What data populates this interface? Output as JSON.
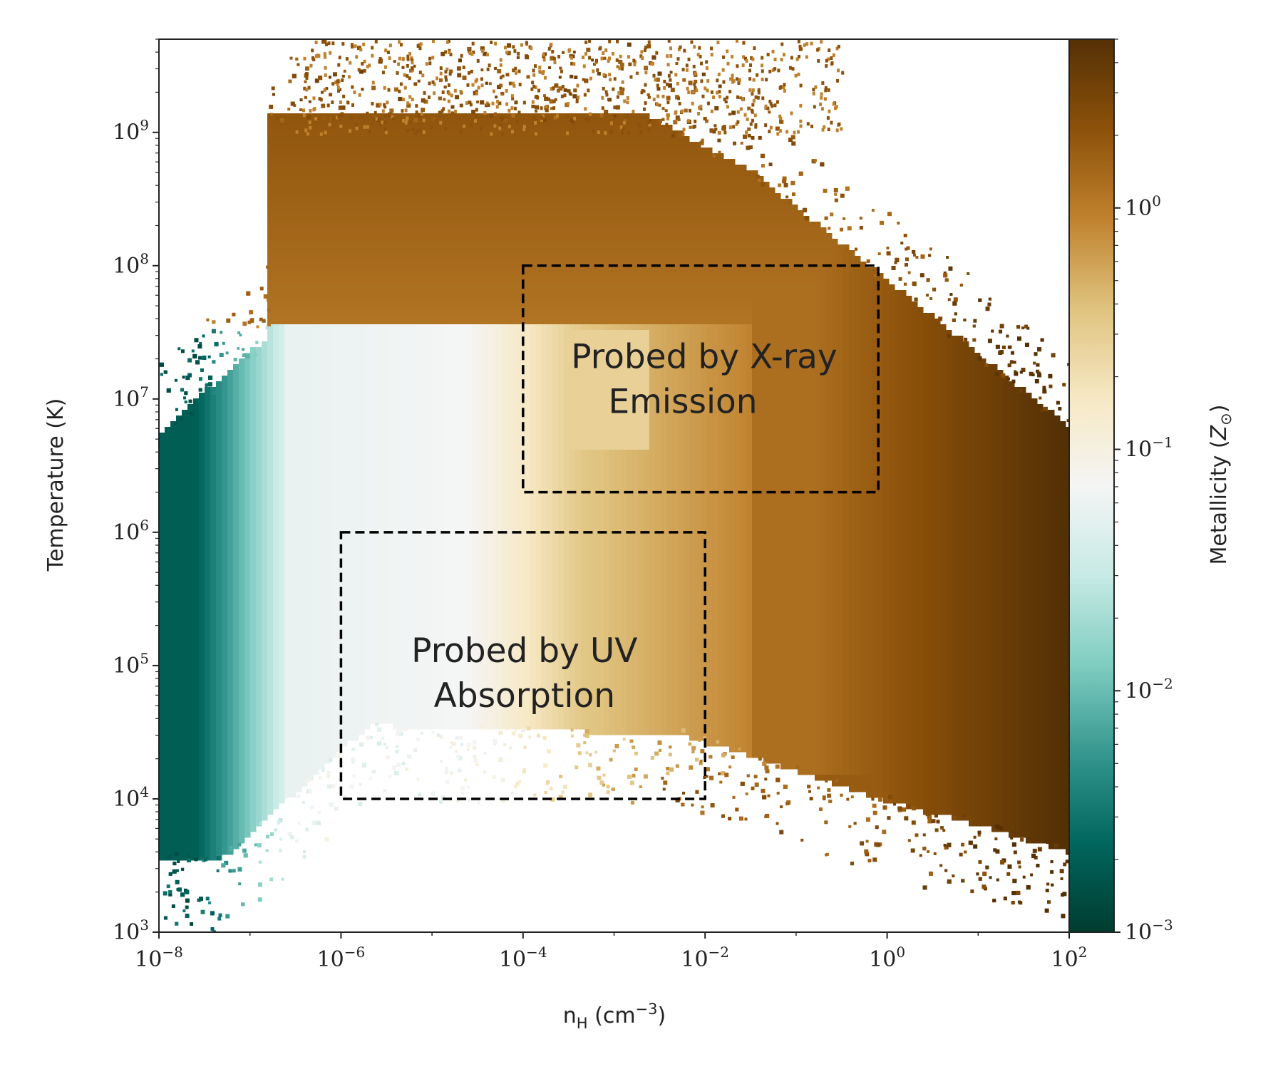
{
  "chart_data": {
    "type": "heatmap",
    "description_kind": "phase diagram (2D histogram) colored by metallicity",
    "x_axis": {
      "label_base": "n",
      "label_sub": "H",
      "label_unit_open": " (cm",
      "label_unit_exp": "−3",
      "label_unit_close": ")",
      "scale": "log",
      "range": [
        1e-08,
        100.0
      ],
      "ticks": [
        {
          "value": 1e-08,
          "base": "10",
          "exp": "−8"
        },
        {
          "value": 1e-06,
          "base": "10",
          "exp": "−6"
        },
        {
          "value": 0.0001,
          "base": "10",
          "exp": "−4"
        },
        {
          "value": 0.01,
          "base": "10",
          "exp": "−2"
        },
        {
          "value": 1.0,
          "base": "10",
          "exp": "0"
        },
        {
          "value": 100.0,
          "base": "10",
          "exp": "2"
        }
      ]
    },
    "y_axis": {
      "label": "Temperature (K)",
      "scale": "log",
      "range": [
        1000.0,
        5000000000.0
      ],
      "ticks": [
        {
          "value": 1000.0,
          "base": "10",
          "exp": "3"
        },
        {
          "value": 10000.0,
          "base": "10",
          "exp": "4"
        },
        {
          "value": 100000.0,
          "base": "10",
          "exp": "5"
        },
        {
          "value": 1000000.0,
          "base": "10",
          "exp": "6"
        },
        {
          "value": 10000000.0,
          "base": "10",
          "exp": "7"
        },
        {
          "value": 100000000.0,
          "base": "10",
          "exp": "8"
        },
        {
          "value": 1000000000.0,
          "base": "10",
          "exp": "9"
        }
      ]
    },
    "colorbar": {
      "label_text": "Metallicity (",
      "label_symbol": "Z",
      "label_sub": "⊙",
      "label_close": ")",
      "scale": "log",
      "range": [
        0.001,
        5
      ],
      "ticks": [
        {
          "value": 0.001,
          "base": "10",
          "exp": "−3"
        },
        {
          "value": 0.01,
          "base": "10",
          "exp": "−2"
        },
        {
          "value": 0.1,
          "base": "10",
          "exp": "−1"
        },
        {
          "value": 1.0,
          "base": "10",
          "exp": "0"
        }
      ],
      "colormap": "BrBG (reversed)",
      "colors": [
        "#003c30",
        "#01665e",
        "#35978f",
        "#80cdc1",
        "#c7eae5",
        "#f5f5f5",
        "#f6e8c3",
        "#dfc27d",
        "#bf812d",
        "#8c510a",
        "#543005"
      ]
    },
    "regions": [
      {
        "label_line1": "Probed by X-ray",
        "label_line2": "Emission",
        "x_range": [
          0.0001,
          0.8
        ],
        "y_range": [
          2000000.0,
          100000000.0
        ],
        "style": "dashed"
      },
      {
        "label_line1": "Probed by UV",
        "label_line2": "Absorption",
        "x_range": [
          1e-06,
          0.01
        ],
        "y_range": [
          10000.0,
          1000000.0
        ],
        "style": "dashed"
      }
    ]
  }
}
